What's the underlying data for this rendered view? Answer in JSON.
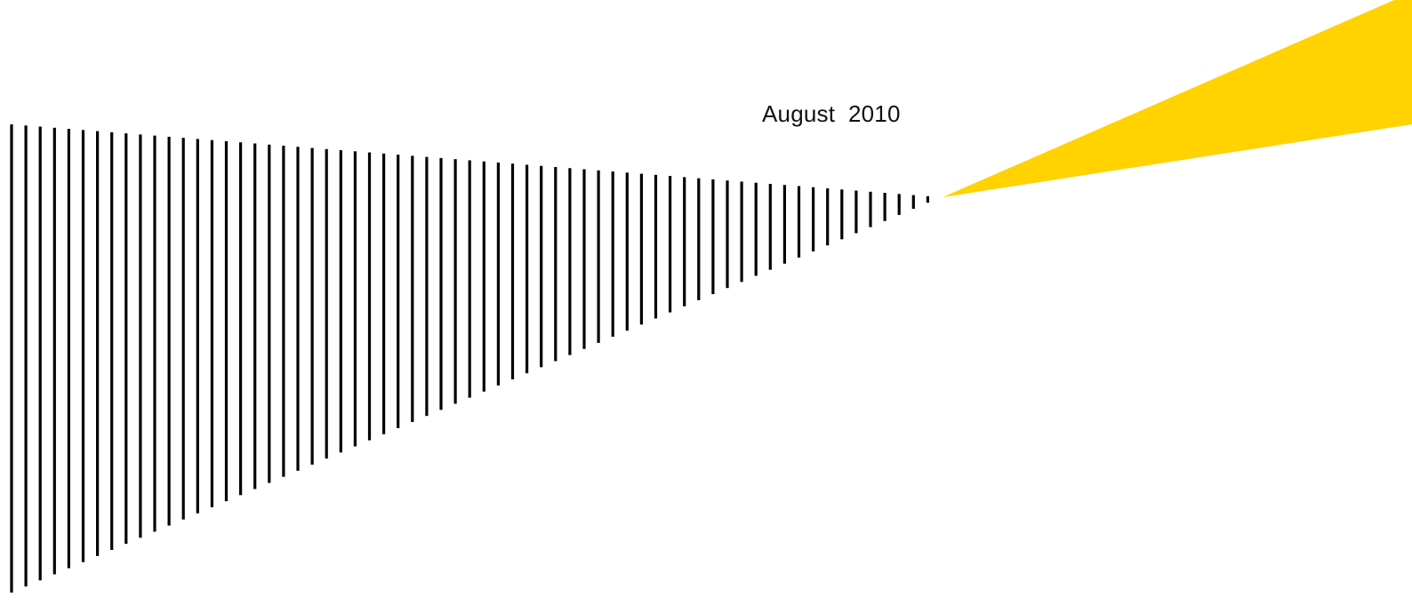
{
  "date_label": "August  2010",
  "colors": {
    "beam": "#FFD200",
    "stripes": "#000000",
    "background": "#FFFFFF"
  },
  "graphic": {
    "stripe_pattern": "converging-vertical-lines",
    "beam_shape": "yellow-wedge"
  }
}
